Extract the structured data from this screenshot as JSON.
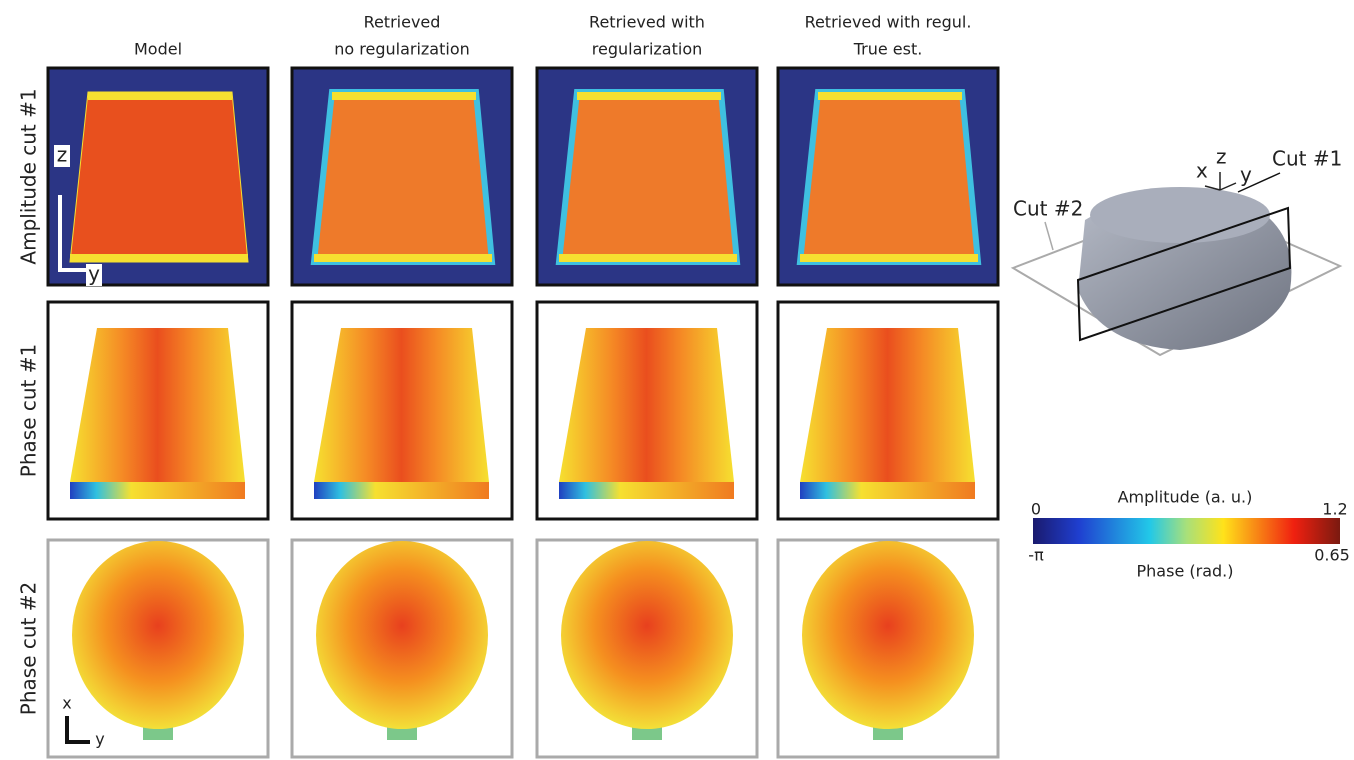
{
  "columns": [
    [
      "Model"
    ],
    [
      "Retrieved",
      "no regularization"
    ],
    [
      "Retrieved with",
      "regularization"
    ],
    [
      "Retrieved with regul.",
      "True est."
    ]
  ],
  "rows": [
    "Amplitude cut #1",
    "Phase cut #1",
    "Phase cut #2"
  ],
  "axes": {
    "top_z": "z",
    "top_y": "y",
    "bottom_x": "x",
    "bottom_y": "y"
  },
  "inset": {
    "x": "x",
    "z": "z",
    "y": "y",
    "cut1": "Cut #1",
    "cut2": "Cut #2"
  },
  "colorbar": {
    "amplitude_title": "Amplitude (a. u.)",
    "amplitude_min": "0",
    "amplitude_max": "1.2",
    "phase_min": "-π",
    "phase_max": "0.65",
    "phase_title": "Phase (rad.)"
  }
}
